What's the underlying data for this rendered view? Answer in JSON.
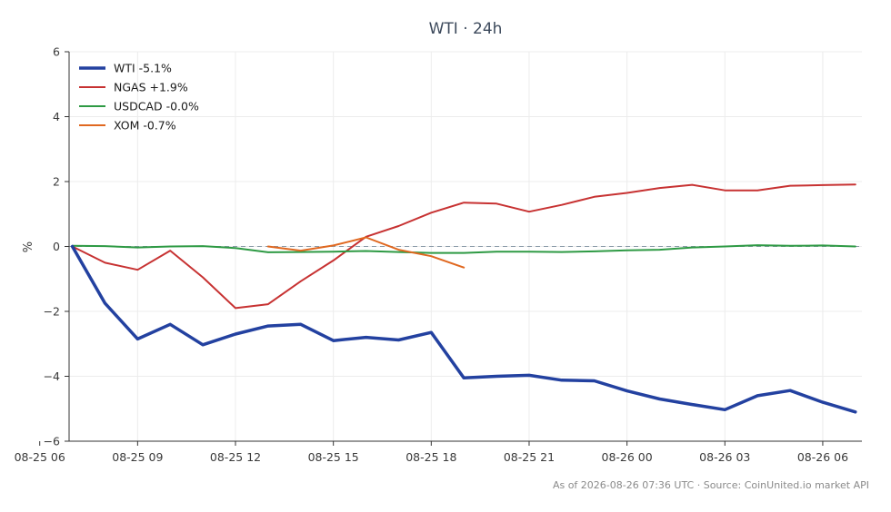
{
  "chart_data": {
    "type": "line",
    "title": "WTI · 24h",
    "ylabel": "%",
    "xlabel": "",
    "ylim": [
      -6,
      6
    ],
    "yticks": [
      -6,
      -4,
      -2,
      0,
      2,
      4,
      6
    ],
    "ytick_labels": [
      "−6",
      "−4",
      "−2",
      "0",
      "2",
      "4",
      "6"
    ],
    "xlim": [
      6.9,
      31.2
    ],
    "xticks": [
      {
        "x": 6,
        "label": "08-25 06"
      },
      {
        "x": 9,
        "label": "08-25 09"
      },
      {
        "x": 12,
        "label": "08-25 12"
      },
      {
        "x": 15,
        "label": "08-25 15"
      },
      {
        "x": 18,
        "label": "08-25 18"
      },
      {
        "x": 21,
        "label": "08-25 21"
      },
      {
        "x": 24,
        "label": "08-26 00"
      },
      {
        "x": 27,
        "label": "08-26 03"
      },
      {
        "x": 30,
        "label": "08-26 06"
      }
    ],
    "grid": true,
    "zero_line": true,
    "legend_position": "top-left",
    "series": [
      {
        "name": "WTI -5.1%",
        "color": "#2341a0",
        "width": 3.5,
        "x": [
          7,
          8,
          9,
          10,
          11,
          12,
          13,
          14,
          15,
          16,
          17,
          18,
          19,
          20,
          21,
          22,
          23,
          24,
          25,
          26,
          27,
          28,
          29,
          30,
          31
        ],
        "y": [
          0.0,
          -1.75,
          -2.85,
          -2.4,
          -3.03,
          -2.7,
          -2.45,
          -2.4,
          -2.9,
          -2.8,
          -2.88,
          -2.65,
          -4.05,
          -4.0,
          -3.97,
          -4.12,
          -4.14,
          -4.45,
          -4.7,
          -4.87,
          -5.03,
          -4.6,
          -4.44,
          -4.8,
          -5.1
        ]
      },
      {
        "name": "NGAS +1.9%",
        "color": "#c73232",
        "width": 2,
        "x": [
          7,
          8,
          9,
          10,
          11,
          12,
          13,
          14,
          15,
          16,
          17,
          18,
          19,
          20,
          21,
          22,
          23,
          24,
          25,
          26,
          27,
          28,
          29,
          30,
          31
        ],
        "y": [
          0.0,
          -0.5,
          -0.72,
          -0.13,
          -0.95,
          -1.9,
          -1.78,
          -1.07,
          -0.43,
          0.3,
          0.63,
          1.04,
          1.35,
          1.32,
          1.07,
          1.28,
          1.53,
          1.65,
          1.8,
          1.9,
          1.73,
          1.73,
          1.87,
          1.89,
          1.91
        ]
      },
      {
        "name": "USDCAD -0.0%",
        "color": "#2e9a44",
        "width": 2,
        "x": [
          7,
          8,
          9,
          10,
          11,
          12,
          13,
          14,
          15,
          16,
          17,
          18,
          19,
          20,
          21,
          22,
          23,
          24,
          25,
          26,
          27,
          28,
          29,
          30,
          31
        ],
        "y": [
          0.02,
          0.01,
          -0.03,
          0.0,
          0.01,
          -0.05,
          -0.18,
          -0.17,
          -0.16,
          -0.14,
          -0.17,
          -0.2,
          -0.2,
          -0.16,
          -0.16,
          -0.17,
          -0.15,
          -0.12,
          -0.1,
          -0.03,
          0.0,
          0.04,
          0.02,
          0.03,
          0.0
        ]
      },
      {
        "name": "XOM -0.7%",
        "color": "#e06820",
        "width": 2,
        "x": [
          13,
          14,
          15,
          16,
          17,
          18,
          19
        ],
        "y": [
          0.0,
          -0.13,
          0.03,
          0.28,
          -0.1,
          -0.3,
          -0.65
        ]
      }
    ]
  },
  "footer": "As of 2026-08-26 07:36 UTC · Source: CoinUnited.io market API"
}
